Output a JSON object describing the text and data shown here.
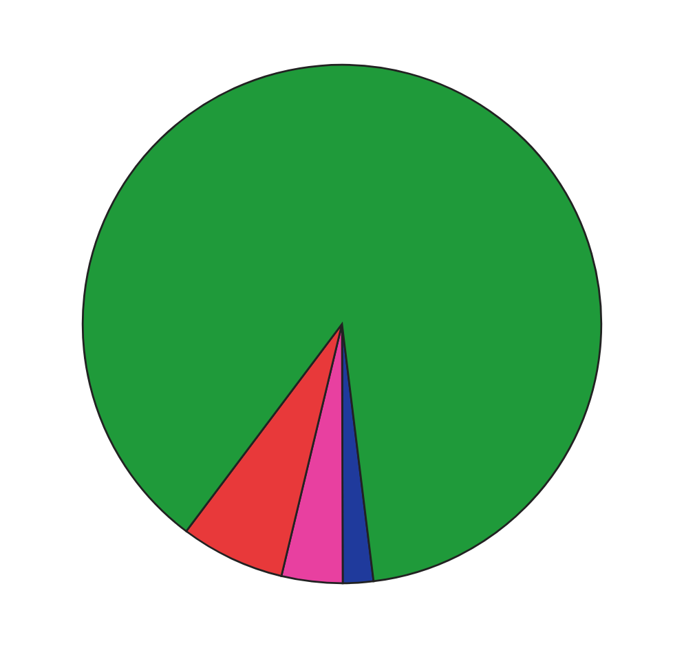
{
  "chart_data": {
    "type": "pie",
    "categories": [
      null,
      null,
      null,
      null
    ],
    "values": [
      1.9,
      3.8,
      6.5,
      87.8
    ],
    "colors": [
      "#1f3a9c",
      "#e840a0",
      "#e8393a",
      "#1f9a3a"
    ]
  }
}
